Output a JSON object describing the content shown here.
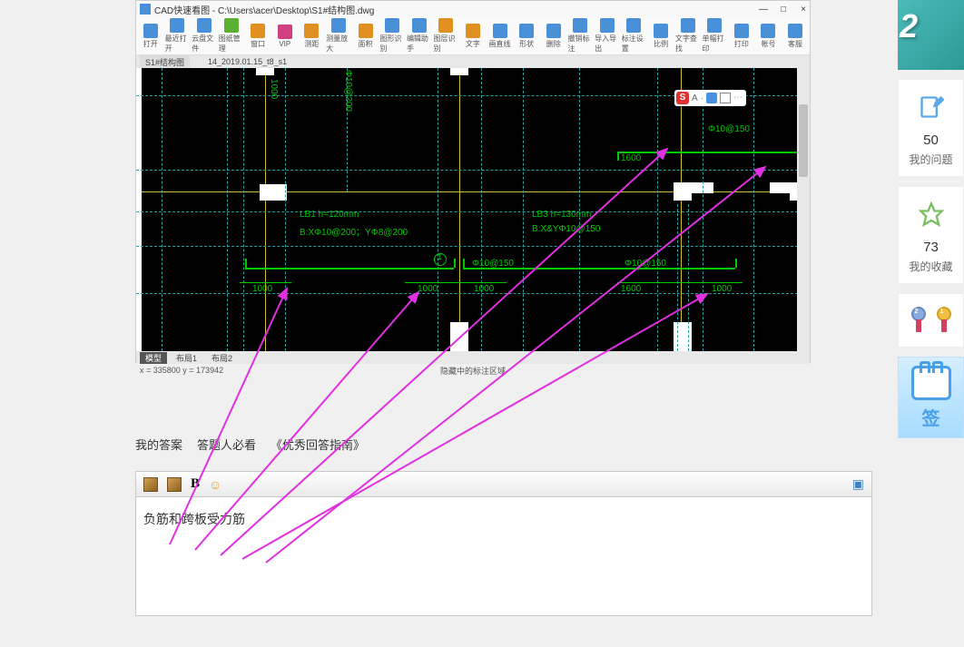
{
  "cad": {
    "title": "CAD快速看图 - C:\\Users\\acer\\Desktop\\S1#结构图.dwg",
    "toolbar": [
      {
        "label": "打开",
        "color": "#4a90d9"
      },
      {
        "label": "最近打开",
        "color": "#4a90d9"
      },
      {
        "label": "云盘文件",
        "color": "#4a90d9"
      },
      {
        "label": "图纸管理",
        "color": "#5ab030"
      },
      {
        "label": "窗口",
        "color": "#e09020"
      },
      {
        "label": "VIP",
        "color": "#d04080"
      },
      {
        "label": "测距",
        "color": "#e09020"
      },
      {
        "label": "测量放大",
        "color": "#4a90d9"
      },
      {
        "label": "面积",
        "color": "#e09020"
      },
      {
        "label": "图形识别",
        "color": "#4a90d9"
      },
      {
        "label": "编辑助手",
        "color": "#4a90d9"
      },
      {
        "label": "图层识别",
        "color": "#e09020"
      },
      {
        "label": "文字",
        "color": "#e09020"
      },
      {
        "label": "画直线",
        "color": "#4a90d9"
      },
      {
        "label": "形状",
        "color": "#4a90d9"
      },
      {
        "label": "删除",
        "color": "#4a90d9"
      },
      {
        "label": "撤销标注",
        "color": "#4a90d9"
      },
      {
        "label": "导入导出",
        "color": "#4a90d9"
      },
      {
        "label": "标注设置",
        "color": "#4a90d9"
      },
      {
        "label": "比例",
        "color": "#4a90d9"
      },
      {
        "label": "文字查找",
        "color": "#4a90d9"
      },
      {
        "label": "单幅打印",
        "color": "#4a90d9"
      },
      {
        "label": "打印",
        "color": "#4a90d9"
      },
      {
        "label": "帐号",
        "color": "#4a90d9"
      },
      {
        "label": "客服",
        "color": "#4a90d9"
      }
    ],
    "tab1": "S1#结构图",
    "tab2": "14_2019.01.15_t8_s1",
    "bottom_tabs": {
      "t1": "模型",
      "t2": "布局1",
      "t3": "布局2"
    },
    "status_left": "x = 335800 y = 173942",
    "status_center": "隐藏中的标注区域",
    "labels": {
      "lb1_1": "LB1  h=120mm",
      "lb1_2": "B:XΦ10@200；YΦ8@200",
      "lb3_1": "LB3   h=130mm",
      "lb3_2": "B:X&YΦ10@150",
      "d1000_1": "1000",
      "d1600_1": "1600",
      "d1600_2": "1600",
      "d1000_2": "1000",
      "d1000_3": "1000",
      "phi10_200": "Φ10@200",
      "phi10_150_1": "Φ10@150",
      "phi10_150_2": "Φ10@150",
      "phi10_150_3": "Φ10@150",
      "circ1": "①"
    },
    "ime": {
      "s": "S",
      "a": "A"
    },
    "colors": {
      "cyan": "#2aa0a0",
      "green": "#00c800",
      "yellow": "#d0c030",
      "magenta": "#e030e0"
    }
  },
  "answer": {
    "my_answer": "我的答案",
    "tip": "答题人必看",
    "guide": "《优秀回答指南》",
    "content": "负筋和跨板受力筋"
  },
  "sidebar": {
    "banner_num": "2",
    "stat1_num": "50",
    "stat1_label": "我的问题",
    "stat2_num": "73",
    "stat2_label": "我的收藏",
    "signin": "签"
  }
}
